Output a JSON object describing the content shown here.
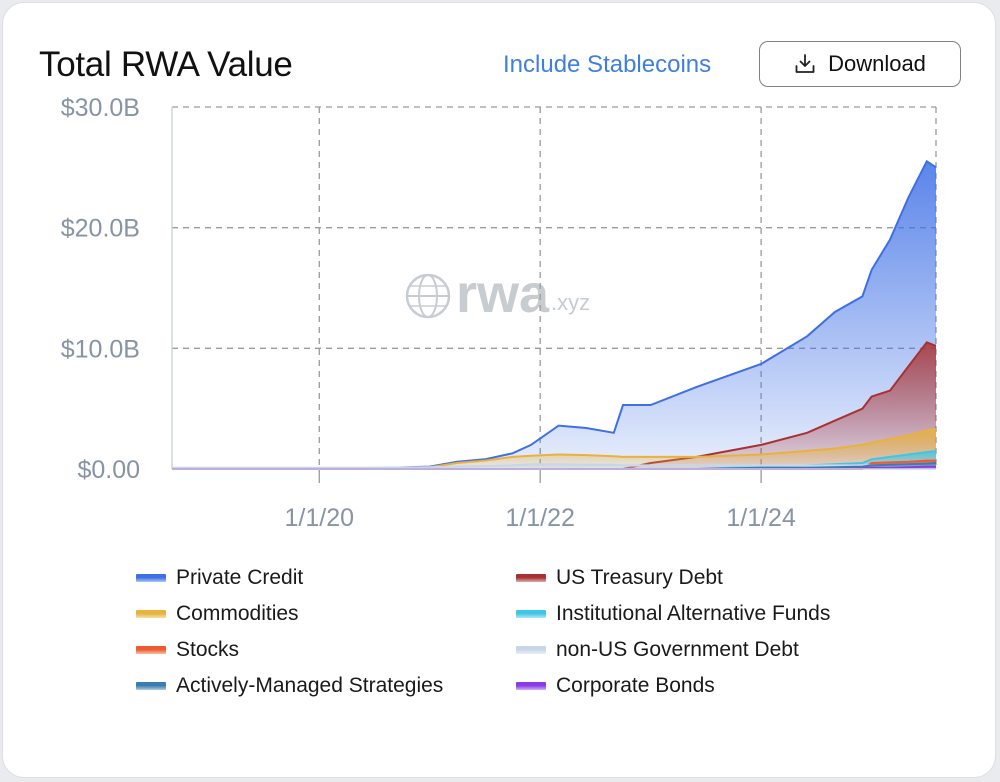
{
  "header": {
    "title": "Total RWA Value",
    "toggle_label": "Include Stablecoins",
    "download_label": "Download"
  },
  "watermark": {
    "logo_text": "rwa",
    "suffix": ".xyz"
  },
  "colors": {
    "private_credit": "#3d6fe6",
    "us_treasury": "#a83232",
    "commodities": "#e8b23c",
    "iaf": "#3ec6e6",
    "stocks": "#ef5a30",
    "non_us_gov": "#c9d6e8",
    "active": "#3b7db0",
    "corporate": "#8a3be6"
  },
  "chart_data": {
    "type": "area",
    "stacked": false,
    "title": "Total RWA Value",
    "x_ticks": [
      "1/1/20",
      "1/1/22",
      "1/1/24"
    ],
    "y_ticks": [
      "$0.00",
      "$10.0B",
      "$20.0B",
      "$30.0B"
    ],
    "ylim": [
      0,
      30
    ],
    "y_unit": "B USD",
    "xlim": [
      "2018-09",
      "2025-08"
    ],
    "grid": true,
    "legend_position": "bottom",
    "x": [
      "2018-09",
      "2019-06",
      "2020-01",
      "2020-06",
      "2021-01",
      "2021-04",
      "2021-07",
      "2021-10",
      "2021-12",
      "2022-03",
      "2022-06",
      "2022-09",
      "2022-10",
      "2023-01",
      "2023-06",
      "2024-01",
      "2024-06",
      "2024-09",
      "2024-12",
      "2025-01",
      "2025-03",
      "2025-05",
      "2025-07",
      "2025-08"
    ],
    "series": [
      {
        "name": "Private Credit",
        "color_key": "private_credit",
        "values": [
          0,
          0,
          0.02,
          0.05,
          0.2,
          0.6,
          0.8,
          1.3,
          2.0,
          3.6,
          3.4,
          3.0,
          5.3,
          5.3,
          6.8,
          8.7,
          11.0,
          13.0,
          14.3,
          16.5,
          19.0,
          22.5,
          25.5,
          25.0
        ]
      },
      {
        "name": "US Treasury Debt",
        "color_key": "us_treasury",
        "values": [
          0,
          0,
          0,
          0,
          0,
          0,
          0,
          0,
          0,
          0,
          0,
          0,
          0,
          0.5,
          1.0,
          2.0,
          3.0,
          4.0,
          5.0,
          6.0,
          6.5,
          8.5,
          10.5,
          10.2
        ]
      },
      {
        "name": "Commodities",
        "color_key": "commodities",
        "values": [
          0,
          0,
          0.01,
          0.03,
          0.15,
          0.5,
          0.7,
          1.0,
          1.1,
          1.2,
          1.15,
          1.05,
          1.0,
          1.0,
          1.0,
          1.2,
          1.5,
          1.7,
          2.0,
          2.2,
          2.5,
          2.8,
          3.2,
          3.3
        ]
      },
      {
        "name": "Institutional Alternative Funds",
        "color_key": "iaf",
        "values": [
          0,
          0,
          0,
          0,
          0,
          0,
          0,
          0,
          0,
          0,
          0,
          0,
          0,
          0,
          0,
          0.2,
          0.3,
          0.4,
          0.5,
          0.8,
          1.0,
          1.2,
          1.4,
          1.5
        ]
      },
      {
        "name": "Stocks",
        "color_key": "stocks",
        "values": [
          0,
          0,
          0,
          0,
          0,
          0,
          0,
          0,
          0,
          0,
          0,
          0,
          0,
          0,
          0,
          0,
          0,
          0,
          0,
          0.5,
          0.55,
          0.6,
          0.7,
          0.7
        ]
      },
      {
        "name": "non-US Government Debt",
        "color_key": "non_us_gov",
        "values": [
          0.1,
          0.1,
          0.1,
          0.1,
          0.15,
          0.2,
          0.25,
          0.3,
          0.4,
          0.4,
          0.35,
          0.35,
          0.3,
          0.3,
          0.3,
          0.3,
          0.3,
          0.3,
          0.3,
          0.3,
          0.3,
          0.3,
          0.3,
          0.3
        ]
      },
      {
        "name": "Actively-Managed Strategies",
        "color_key": "active",
        "values": [
          0,
          0,
          0,
          0,
          0,
          0,
          0,
          0,
          0,
          0,
          0,
          0,
          0,
          0,
          0,
          0.1,
          0.1,
          0.15,
          0.2,
          0.3,
          0.35,
          0.4,
          0.45,
          0.5
        ]
      },
      {
        "name": "Corporate Bonds",
        "color_key": "corporate",
        "values": [
          0,
          0,
          0,
          0,
          0,
          0,
          0,
          0,
          0,
          0,
          0,
          0,
          0,
          0,
          0,
          0,
          0,
          0,
          0.05,
          0.1,
          0.1,
          0.15,
          0.2,
          0.2
        ]
      }
    ]
  },
  "legend": [
    {
      "label": "Private Credit",
      "color_key": "private_credit"
    },
    {
      "label": "US Treasury Debt",
      "color_key": "us_treasury"
    },
    {
      "label": "Commodities",
      "color_key": "commodities"
    },
    {
      "label": "Institutional Alternative Funds",
      "color_key": "iaf"
    },
    {
      "label": "Stocks",
      "color_key": "stocks"
    },
    {
      "label": "non-US Government Debt",
      "color_key": "non_us_gov"
    },
    {
      "label": "Actively-Managed Strategies",
      "color_key": "active"
    },
    {
      "label": "Corporate Bonds",
      "color_key": "corporate"
    }
  ]
}
